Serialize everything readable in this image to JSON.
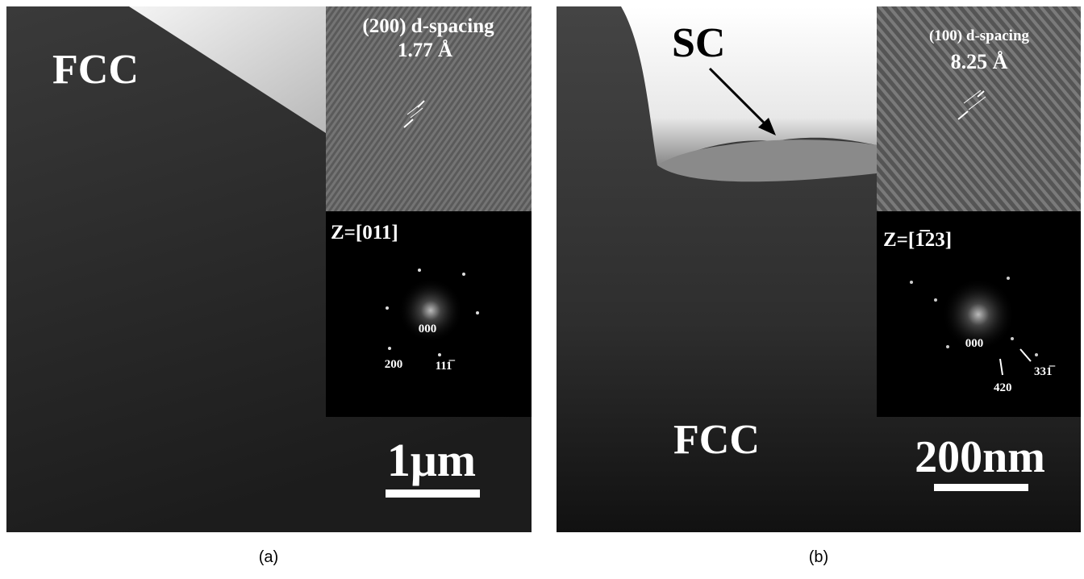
{
  "panels": [
    {
      "label": "FCC",
      "inset_title": "(200) d-spacing",
      "inset_value": "1.77 Å",
      "zone": "Z=[011]",
      "spots": [
        "000",
        "200",
        "111̅"
      ],
      "scale_bar": "1μm",
      "caption": "(a)"
    },
    {
      "label": "SC",
      "label2": "FCC",
      "inset_title": "(100) d-spacing",
      "inset_value": "8.25 Å",
      "zone": "Z=[1̅23]",
      "spots": [
        "000",
        "331̅",
        "420"
      ],
      "scale_bar": "200nm",
      "caption": "(b)"
    }
  ]
}
